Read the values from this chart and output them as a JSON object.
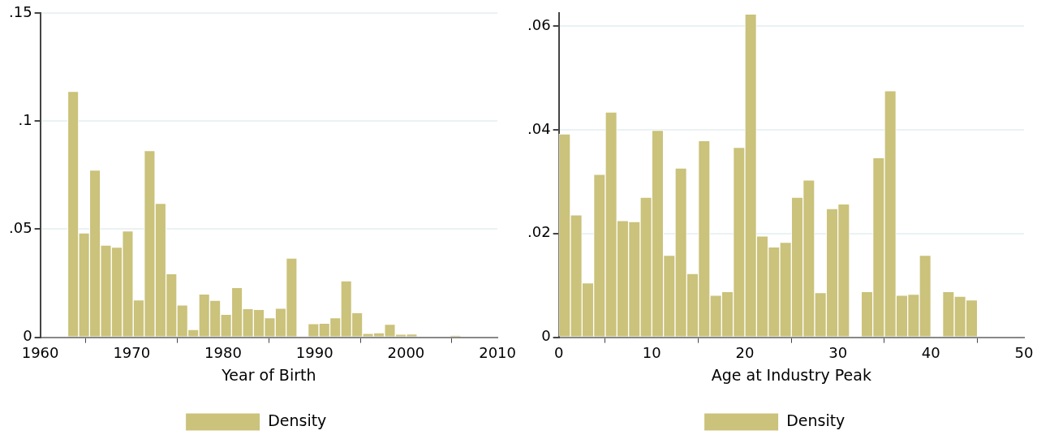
{
  "chart_data": [
    {
      "type": "histogram",
      "xlabel": "Year of Birth",
      "bins": [
        1963,
        1964.19,
        1965.39,
        1966.58,
        1967.78,
        1968.97,
        1970.17,
        1971.36,
        1972.56,
        1973.75,
        1974.94,
        1976.14,
        1977.33,
        1978.53,
        1979.72,
        1980.92,
        1982.11,
        1983.31,
        1984.5,
        1985.69,
        1986.89,
        1988.08,
        1989.28,
        1990.47,
        1991.67,
        1992.86,
        1994.06,
        1995.25,
        1996.44,
        1997.64,
        1998.83,
        2000.03,
        2001.22,
        2002.42,
        2003.61,
        2004.81,
        2006
      ],
      "series": [
        {
          "name": "Density",
          "color": "#cbc27b",
          "values": [
            0.1137,
            0.0482,
            0.0773,
            0.0426,
            0.0417,
            0.0492,
            0.0173,
            0.0863,
            0.0619,
            0.0294,
            0.0149,
            0.0036,
            0.02,
            0.0171,
            0.0106,
            0.023,
            0.0132,
            0.0129,
            0.009,
            0.0134,
            0.0366,
            0,
            0.0063,
            0.0065,
            0.009,
            0.0261,
            0.0114,
            0.0018,
            0.0021,
            0.006,
            0.0014,
            0.0015,
            0,
            0,
            0,
            0.0008
          ]
        }
      ],
      "xlim": [
        1960,
        2010
      ],
      "xticks": [
        1960,
        1970,
        1980,
        1990,
        2000,
        2010
      ],
      "ylim": [
        0,
        0.15
      ],
      "yticks": [
        {
          "value": 0,
          "label": "0"
        },
        {
          "value": 0.05,
          "label": ".05"
        },
        {
          "value": 0.1,
          "label": ".1"
        },
        {
          "value": 0.15,
          "label": ".15"
        }
      ],
      "grid": "y",
      "legend": "bottom"
    },
    {
      "type": "histogram",
      "xlabel": "Age at Industry Peak",
      "bins": [
        0,
        1.25,
        2.5,
        3.75,
        5,
        6.25,
        7.5,
        8.75,
        10,
        11.25,
        12.5,
        13.75,
        15,
        16.25,
        17.5,
        18.75,
        20,
        21.25,
        22.5,
        23.75,
        25,
        26.25,
        27.5,
        28.75,
        30,
        31.25,
        32.5,
        33.75,
        35,
        36.25,
        37.5,
        38.75,
        40,
        41.25,
        42.5,
        43.75,
        45
      ],
      "series": [
        {
          "name": "Density",
          "color": "#cbc27b",
          "values": [
            0.0392,
            0.0236,
            0.0105,
            0.0314,
            0.0434,
            0.0225,
            0.0223,
            0.027,
            0.0399,
            0.0158,
            0.0326,
            0.0123,
            0.0379,
            0.0081,
            0.0088,
            0.0366,
            0.0623,
            0.0195,
            0.0174,
            0.0183,
            0.027,
            0.0303,
            0.0086,
            0.0248,
            0.0257,
            0,
            0.0088,
            0.0346,
            0.0475,
            0.0081,
            0.0083,
            0.0158,
            0,
            0.0088,
            0.0079,
            0.0072
          ]
        }
      ],
      "xlim": [
        0,
        50
      ],
      "xticks": [
        0,
        10,
        20,
        30,
        40,
        50
      ],
      "ylim": [
        0,
        0.0625
      ],
      "yticks": [
        {
          "value": 0,
          "label": "0"
        },
        {
          "value": 0.02,
          "label": ".02"
        },
        {
          "value": 0.04,
          "label": ".04"
        },
        {
          "value": 0.06,
          "label": ".06"
        }
      ],
      "grid": "y",
      "legend": "bottom"
    }
  ]
}
